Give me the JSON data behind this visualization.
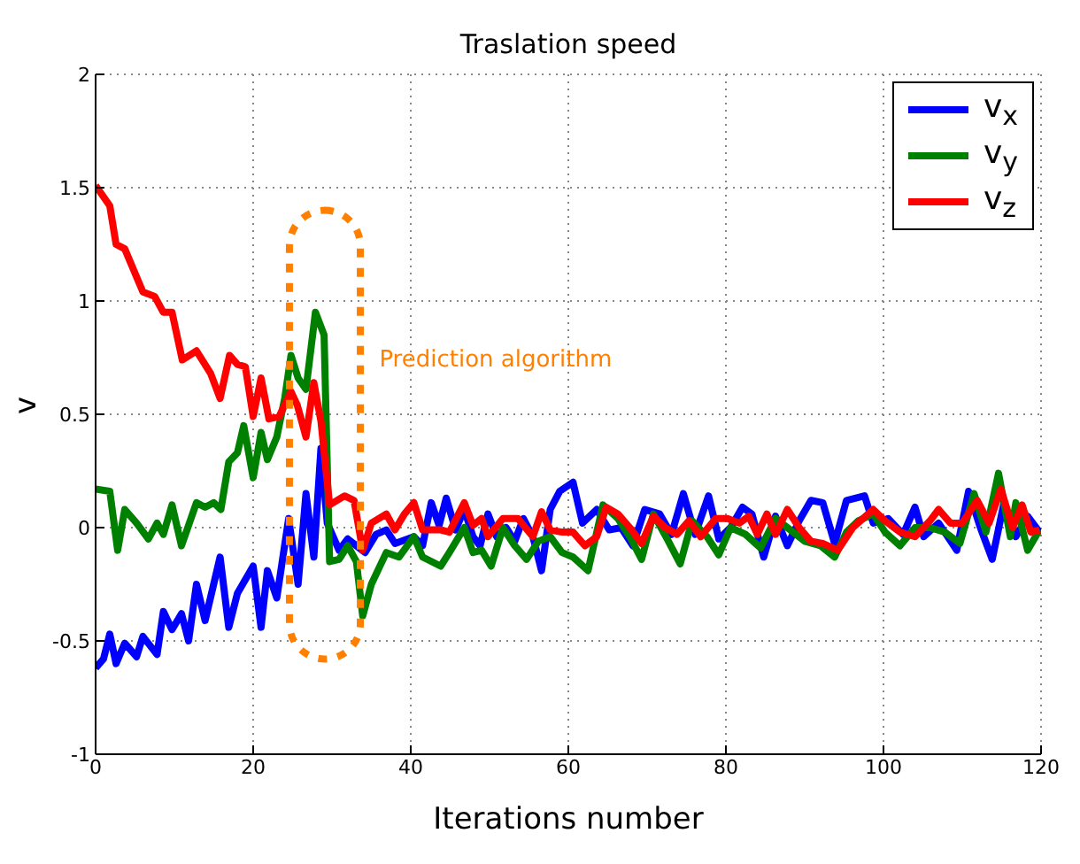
{
  "chart_data": {
    "type": "line",
    "title": "Traslation speed",
    "xlabel": "Iterations number",
    "ylabel": "v",
    "xlim": [
      0,
      120
    ],
    "xticks": [
      0,
      20,
      40,
      60,
      80,
      100,
      120
    ],
    "ylim": [
      -1,
      2
    ],
    "yticks": [
      -1,
      -0.5,
      0,
      0.5,
      1,
      1.5,
      2
    ],
    "grid": true,
    "legend": "top right",
    "marker": "none",
    "line_style": "solid",
    "annotations": [
      "Prediction algorithm"
    ],
    "series": [
      {
        "name": "v$_{x}$",
        "color": "#0000ff",
        "x": [
          0,
          1,
          1.8,
          2.6,
          3.7,
          5.2,
          6,
          7.8,
          8.6,
          9.7,
          10.9,
          11.8,
          12.8,
          13.9,
          15.8,
          16.9,
          18,
          20,
          21,
          21.8,
          23,
          24.5,
          25.7,
          26.7,
          27.7,
          28.6,
          29.4,
          30.9,
          32,
          33.1,
          34.2,
          35.6,
          36.9,
          38,
          40.4,
          41.5,
          42.6,
          43.6,
          44.5,
          45.7,
          46.8,
          47.9,
          48.8,
          49.8,
          50.9,
          52.1,
          53.2,
          54.3,
          55.5,
          56.6,
          57.7,
          58.9,
          60.6,
          61.8,
          63.6,
          65.2,
          66.7,
          68.2,
          69.7,
          71.6,
          73.1,
          74.6,
          76.1,
          77.8,
          79.1,
          80.6,
          82.1,
          83.3,
          84.8,
          86.3,
          87.8,
          89.3,
          90.8,
          92.3,
          93.8,
          95.3,
          97.6,
          98.7,
          100.6,
          102.5,
          104,
          105.1,
          107,
          109.3,
          110.8,
          112.3,
          113.8,
          115.3,
          116.8,
          118.3,
          119.8
        ],
        "values": [
          -0.62,
          -0.58,
          -0.47,
          -0.6,
          -0.51,
          -0.57,
          -0.48,
          -0.56,
          -0.37,
          -0.45,
          -0.38,
          -0.5,
          -0.25,
          -0.41,
          -0.13,
          -0.44,
          -0.29,
          -0.17,
          -0.44,
          -0.19,
          -0.31,
          0.04,
          -0.25,
          0.15,
          -0.13,
          0.35,
          0.02,
          -0.1,
          -0.05,
          -0.08,
          -0.11,
          -0.03,
          -0.01,
          -0.07,
          -0.04,
          -0.08,
          0.11,
          0.01,
          0.13,
          -0.01,
          0.08,
          -0.04,
          -0.08,
          0.06,
          -0.04,
          0,
          -0.06,
          0.04,
          -0.04,
          -0.19,
          0.08,
          0.16,
          0.2,
          0.02,
          0.08,
          -0.01,
          0,
          -0.08,
          0.08,
          0.06,
          -0.03,
          0.15,
          -0.03,
          0.14,
          -0.05,
          0,
          0.09,
          0.06,
          -0.13,
          0.05,
          -0.08,
          0.03,
          0.12,
          0.11,
          -0.07,
          0.12,
          0.14,
          0.02,
          0.04,
          -0.03,
          0.09,
          -0.04,
          0.02,
          -0.1,
          0.16,
          0,
          -0.14,
          0.11,
          -0.04,
          0.05,
          -0.02
        ]
      },
      {
        "name": "v$_{y}$",
        "color": "#008000",
        "x": [
          0,
          1.8,
          2.8,
          3.7,
          5.2,
          6.7,
          7.8,
          8.6,
          9.7,
          10.9,
          12.8,
          13.9,
          15,
          15.9,
          16.9,
          18,
          18.8,
          20,
          21,
          21.8,
          23,
          24,
          24.8,
          25.7,
          26.7,
          27.9,
          29,
          29.7,
          30.9,
          32,
          33.1,
          33.9,
          35,
          36.9,
          38.5,
          40.4,
          41.5,
          43.8,
          44.9,
          46.8,
          47.9,
          49,
          50.2,
          51.7,
          53.2,
          54.7,
          56.2,
          57.7,
          59.2,
          60.6,
          62.5,
          64.4,
          66.3,
          67.8,
          69.3,
          70.8,
          72.7,
          74.2,
          75.7,
          77.6,
          79.1,
          80.6,
          82.5,
          84.4,
          86.3,
          87.8,
          90,
          92,
          93.8,
          95.3,
          96.8,
          98.7,
          100.2,
          102.1,
          104,
          105.9,
          107.8,
          109.7,
          111.5,
          113,
          114.6,
          116.1,
          116.8,
          118.3,
          119.8
        ],
        "values": [
          0.17,
          0.16,
          -0.1,
          0.08,
          0.02,
          -0.05,
          0.02,
          -0.03,
          0.1,
          -0.08,
          0.11,
          0.09,
          0.11,
          0.08,
          0.29,
          0.33,
          0.45,
          0.22,
          0.42,
          0.3,
          0.4,
          0.57,
          0.76,
          0.66,
          0.61,
          0.95,
          0.85,
          -0.15,
          -0.14,
          -0.08,
          -0.15,
          -0.39,
          -0.25,
          -0.11,
          -0.13,
          -0.04,
          -0.13,
          -0.17,
          -0.11,
          0,
          -0.11,
          -0.1,
          -0.17,
          0,
          -0.08,
          -0.14,
          -0.06,
          -0.04,
          -0.11,
          -0.13,
          -0.19,
          0.1,
          0.04,
          -0.04,
          -0.14,
          0.06,
          -0.06,
          -0.16,
          0.03,
          -0.04,
          -0.12,
          0,
          -0.03,
          -0.09,
          0.04,
          0,
          -0.06,
          -0.08,
          -0.13,
          -0.02,
          0.03,
          0.06,
          -0.02,
          -0.08,
          0,
          0,
          -0.02,
          -0.07,
          0.15,
          -0.02,
          0.24,
          -0.04,
          0.11,
          -0.1,
          -0.01
        ]
      },
      {
        "name": "v$_{z}$",
        "color": "#ff0000",
        "x": [
          0,
          1.8,
          2.6,
          3.7,
          6,
          7.5,
          8.6,
          9.7,
          11,
          12.8,
          14.6,
          15.8,
          17,
          18,
          19,
          20,
          21,
          22,
          23.3,
          24.8,
          25.6,
          26.7,
          27.7,
          28.6,
          29.7,
          31.6,
          32.8,
          33.9,
          35,
          36.9,
          38,
          39.2,
          40.4,
          41.5,
          43.8,
          44.9,
          46.8,
          47.9,
          49,
          49.8,
          51.7,
          53.6,
          55.5,
          56.6,
          57.7,
          59.2,
          60.6,
          62.1,
          63.6,
          64.8,
          66.3,
          67.8,
          69.3,
          70.8,
          72.3,
          73.8,
          75.3,
          76.8,
          78.7,
          80.2,
          81.7,
          82.9,
          84,
          85.2,
          86.3,
          87.8,
          89.3,
          90.8,
          92.3,
          94.2,
          96.1,
          98.7,
          100.2,
          102.1,
          104,
          105.9,
          107,
          108.5,
          110,
          111.9,
          113.4,
          114.9,
          116.4,
          117.6,
          118.7,
          119.8
        ],
        "values": [
          1.51,
          1.42,
          1.25,
          1.23,
          1.04,
          1.02,
          0.95,
          0.95,
          0.74,
          0.78,
          0.68,
          0.57,
          0.76,
          0.72,
          0.71,
          0.49,
          0.66,
          0.48,
          0.49,
          0.6,
          0.54,
          0.4,
          0.64,
          0.47,
          0.1,
          0.14,
          0.12,
          -0.1,
          0.02,
          0.06,
          -0.01,
          0.06,
          0.11,
          -0.01,
          -0.01,
          -0.02,
          0.11,
          0.01,
          0.04,
          -0.04,
          0.04,
          0.04,
          -0.04,
          0.07,
          -0.01,
          -0.02,
          -0.02,
          -0.08,
          -0.04,
          0.09,
          0.06,
          0,
          -0.07,
          0.05,
          0,
          -0.03,
          0.03,
          -0.04,
          0.04,
          0.04,
          0.02,
          0.05,
          -0.03,
          0.06,
          -0.03,
          0.08,
          0,
          -0.06,
          -0.07,
          -0.1,
          0,
          0.08,
          0.03,
          -0.02,
          -0.04,
          0.03,
          0.08,
          0.02,
          0.02,
          0.12,
          0.02,
          0.17,
          0,
          0.1,
          -0.02,
          -0.01
        ]
      }
    ]
  }
}
